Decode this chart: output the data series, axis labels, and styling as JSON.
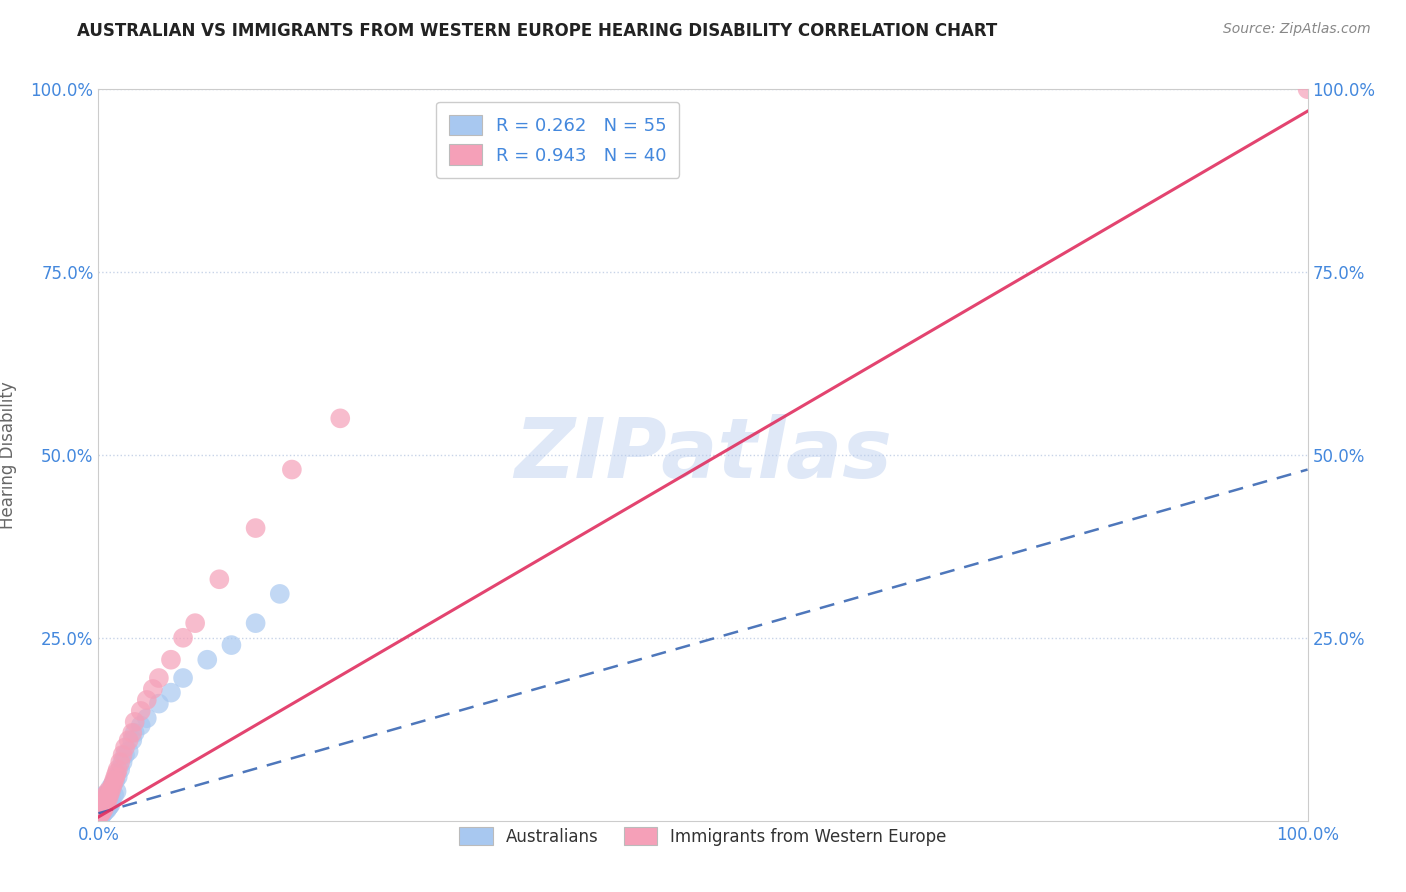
{
  "title": "AUSTRALIAN VS IMMIGRANTS FROM WESTERN EUROPE HEARING DISABILITY CORRELATION CHART",
  "source": "Source: ZipAtlas.com",
  "ylabel": "Hearing Disability",
  "background_color": "#ffffff",
  "watermark_text": "ZIPatlas",
  "blue_color": "#a8c8f0",
  "pink_color": "#f5a0b8",
  "blue_line_color": "#2255aa",
  "pink_line_color": "#e03060",
  "grid_color": "#c8d4e8",
  "tick_color": "#4488dd",
  "axis_color": "#cccccc",
  "xmin": 0.0,
  "xmax": 1.0,
  "ymin": 0.0,
  "ymax": 1.0,
  "blue_scatter_x": [
    0.001,
    0.001,
    0.002,
    0.002,
    0.002,
    0.002,
    0.002,
    0.003,
    0.003,
    0.003,
    0.003,
    0.003,
    0.004,
    0.004,
    0.004,
    0.004,
    0.005,
    0.005,
    0.005,
    0.005,
    0.005,
    0.006,
    0.006,
    0.006,
    0.007,
    0.007,
    0.007,
    0.008,
    0.008,
    0.009,
    0.009,
    0.01,
    0.01,
    0.011,
    0.011,
    0.012,
    0.013,
    0.014,
    0.015,
    0.016,
    0.018,
    0.02,
    0.022,
    0.025,
    0.028,
    0.03,
    0.035,
    0.04,
    0.05,
    0.06,
    0.07,
    0.09,
    0.11,
    0.13,
    0.15
  ],
  "blue_scatter_y": [
    0.01,
    0.012,
    0.008,
    0.015,
    0.01,
    0.018,
    0.022,
    0.008,
    0.012,
    0.02,
    0.025,
    0.03,
    0.01,
    0.018,
    0.025,
    0.032,
    0.012,
    0.016,
    0.022,
    0.028,
    0.035,
    0.015,
    0.02,
    0.028,
    0.015,
    0.025,
    0.035,
    0.018,
    0.03,
    0.02,
    0.038,
    0.022,
    0.045,
    0.028,
    0.042,
    0.05,
    0.035,
    0.055,
    0.04,
    0.06,
    0.07,
    0.08,
    0.09,
    0.095,
    0.11,
    0.12,
    0.13,
    0.14,
    0.16,
    0.175,
    0.195,
    0.22,
    0.24,
    0.27,
    0.31
  ],
  "pink_scatter_x": [
    0.001,
    0.002,
    0.002,
    0.003,
    0.003,
    0.004,
    0.004,
    0.005,
    0.005,
    0.006,
    0.006,
    0.007,
    0.008,
    0.008,
    0.009,
    0.01,
    0.011,
    0.012,
    0.013,
    0.014,
    0.015,
    0.016,
    0.018,
    0.02,
    0.022,
    0.025,
    0.028,
    0.03,
    0.035,
    0.04,
    0.045,
    0.05,
    0.06,
    0.07,
    0.08,
    0.1,
    0.13,
    0.16,
    0.2,
    1.0
  ],
  "pink_scatter_y": [
    0.008,
    0.01,
    0.015,
    0.012,
    0.02,
    0.015,
    0.025,
    0.018,
    0.03,
    0.022,
    0.035,
    0.025,
    0.03,
    0.04,
    0.035,
    0.04,
    0.045,
    0.05,
    0.055,
    0.06,
    0.065,
    0.07,
    0.08,
    0.09,
    0.1,
    0.11,
    0.12,
    0.135,
    0.15,
    0.165,
    0.18,
    0.195,
    0.22,
    0.25,
    0.27,
    0.33,
    0.4,
    0.48,
    0.55,
    1.0
  ],
  "blue_line_x0": 0.0,
  "blue_line_y0": 0.01,
  "blue_line_x1": 1.0,
  "blue_line_y1": 0.48,
  "pink_line_x0": 0.0,
  "pink_line_y0": 0.005,
  "pink_line_x1": 1.0,
  "pink_line_y1": 0.97
}
